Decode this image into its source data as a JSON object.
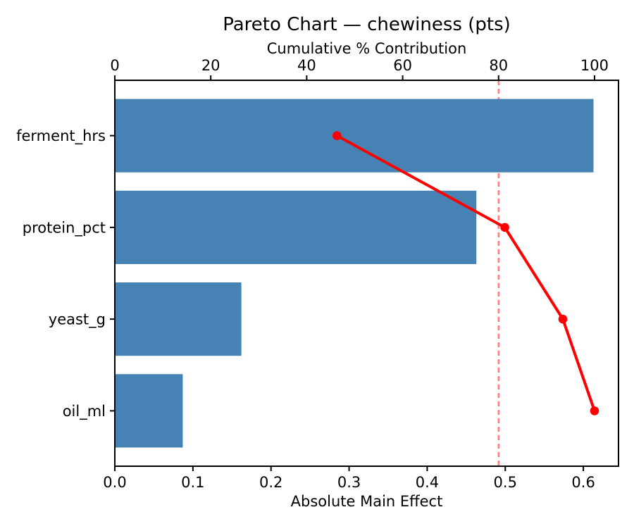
{
  "chart_data": {
    "type": "bar",
    "subtype": "pareto",
    "orientation": "horizontal",
    "title": "Pareto Chart — chewiness (pts)",
    "top_xlabel": "Cumulative % Contribution",
    "xlabel": "Absolute Main Effect",
    "categories": [
      "ferment_hrs",
      "protein_pct",
      "yeast_g",
      "oil_ml"
    ],
    "series": [
      {
        "name": "Absolute Main Effect",
        "type": "bar",
        "values": [
          0.613,
          0.463,
          0.162,
          0.087
        ],
        "color": "#4682B4"
      },
      {
        "name": "Cumulative % Contribution",
        "type": "line",
        "values": [
          46.3,
          81.3,
          93.4,
          100.0
        ],
        "color": "#FF0000",
        "marker": "circle"
      }
    ],
    "xlim": [
      0,
      0.645
    ],
    "top_xlim": [
      0,
      105
    ],
    "xticks": [
      "0.0",
      "0.1",
      "0.2",
      "0.3",
      "0.4",
      "0.5",
      "0.6"
    ],
    "top_xticks": [
      "0",
      "20",
      "40",
      "60",
      "80",
      "100"
    ],
    "threshold": {
      "value": 80,
      "axis": "top",
      "style": "dashed",
      "color": "#FF0000",
      "opacity": 0.5
    },
    "grid": false,
    "legend": "none",
    "background": "#FFFFFF",
    "bar_color": "#4682B4",
    "line_color": "#FF0000",
    "text_color": "#000000"
  }
}
